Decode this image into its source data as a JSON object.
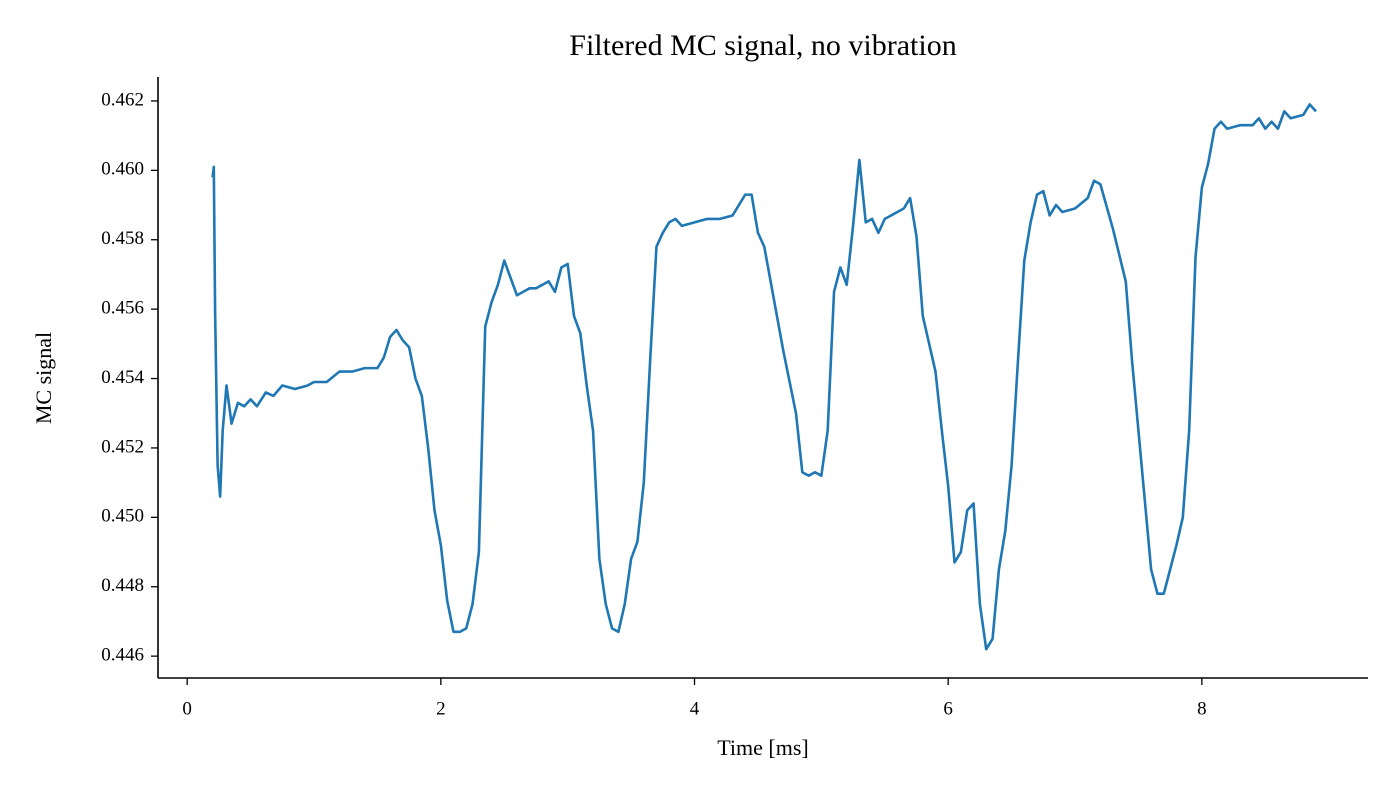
{
  "chart_data": {
    "type": "line",
    "title": "Filtered MC signal, no vibration",
    "xlabel": "Time [ms]",
    "ylabel": "MC signal",
    "xlim": [
      -0.23,
      9.31
    ],
    "ylim": [
      0.44537,
      0.46269
    ],
    "xticks": [
      0,
      2,
      4,
      6,
      8
    ],
    "yticks": [
      0.446,
      0.448,
      {
        "value": 0.45,
        "label": "0.450"
      },
      0.452,
      0.454,
      0.456,
      0.458,
      {
        "value": 0.46,
        "label": "0.460"
      },
      0.462
    ],
    "series": [
      {
        "color": "#1f77b4",
        "x": [
          0.2,
          0.21,
          0.22,
          0.24,
          0.26,
          0.28,
          0.31,
          0.35,
          0.4,
          0.45,
          0.5,
          0.55,
          0.62,
          0.68,
          0.75,
          0.85,
          0.95,
          1.0,
          1.1,
          1.2,
          1.3,
          1.4,
          1.5,
          1.55,
          1.6,
          1.65,
          1.7,
          1.75,
          1.8,
          1.85,
          1.9,
          1.95,
          2.0,
          2.05,
          2.1,
          2.15,
          2.2,
          2.25,
          2.3,
          2.35,
          2.4,
          2.45,
          2.5,
          2.55,
          2.6,
          2.65,
          2.7,
          2.75,
          2.85,
          2.9,
          2.95,
          3.0,
          3.05,
          3.1,
          3.15,
          3.2,
          3.25,
          3.3,
          3.35,
          3.4,
          3.45,
          3.5,
          3.55,
          3.6,
          3.65,
          3.7,
          3.75,
          3.8,
          3.85,
          3.9,
          4.0,
          4.1,
          4.2,
          4.3,
          4.35,
          4.4,
          4.45,
          4.5,
          4.55,
          4.6,
          4.7,
          4.8,
          4.85,
          4.9,
          4.95,
          5.0,
          5.05,
          5.1,
          5.15,
          5.2,
          5.25,
          5.3,
          5.35,
          5.4,
          5.45,
          5.5,
          5.55,
          5.6,
          5.65,
          5.7,
          5.75,
          5.8,
          5.9,
          5.95,
          6.0,
          6.05,
          6.1,
          6.15,
          6.2,
          6.25,
          6.3,
          6.35,
          6.4,
          6.45,
          6.5,
          6.55,
          6.6,
          6.65,
          6.7,
          6.75,
          6.8,
          6.85,
          6.9,
          7.0,
          7.1,
          7.15,
          7.2,
          7.3,
          7.4,
          7.45,
          7.5,
          7.55,
          7.6,
          7.65,
          7.7,
          7.75,
          7.8,
          7.85,
          7.9,
          7.95,
          8.0,
          8.05,
          8.1,
          8.15,
          8.2,
          8.3,
          8.4,
          8.45,
          8.5,
          8.55,
          8.6,
          8.65,
          8.7,
          8.8,
          8.85,
          8.9
        ],
        "values": [
          0.4598,
          0.4601,
          0.456,
          0.4515,
          0.4506,
          0.4525,
          0.4538,
          0.4527,
          0.4533,
          0.4532,
          0.4534,
          0.4532,
          0.4536,
          0.4535,
          0.4538,
          0.4537,
          0.4538,
          0.4539,
          0.4539,
          0.4542,
          0.4542,
          0.4543,
          0.4543,
          0.4546,
          0.4552,
          0.4554,
          0.4551,
          0.4549,
          0.454,
          0.4535,
          0.452,
          0.4502,
          0.4492,
          0.4476,
          0.4467,
          0.4467,
          0.4468,
          0.4475,
          0.449,
          0.4555,
          0.4562,
          0.4567,
          0.4574,
          0.4569,
          0.4564,
          0.4565,
          0.4566,
          0.4566,
          0.4568,
          0.4565,
          0.4572,
          0.4573,
          0.4558,
          0.4553,
          0.4538,
          0.4525,
          0.4488,
          0.4475,
          0.4468,
          0.4467,
          0.4475,
          0.4488,
          0.4493,
          0.451,
          0.4545,
          0.4578,
          0.4582,
          0.4585,
          0.4586,
          0.4584,
          0.4585,
          0.4586,
          0.4586,
          0.4587,
          0.459,
          0.4593,
          0.4593,
          0.4582,
          0.4578,
          0.4568,
          0.4548,
          0.453,
          0.4513,
          0.4512,
          0.4513,
          0.4512,
          0.4525,
          0.4565,
          0.4572,
          0.4567,
          0.4584,
          0.4603,
          0.4585,
          0.4586,
          0.4582,
          0.4586,
          0.4587,
          0.4588,
          0.4589,
          0.4592,
          0.4581,
          0.4558,
          0.4542,
          0.4525,
          0.4509,
          0.4487,
          0.449,
          0.4502,
          0.4504,
          0.4475,
          0.4462,
          0.4465,
          0.4485,
          0.4496,
          0.4515,
          0.4545,
          0.4574,
          0.4585,
          0.4593,
          0.4594,
          0.4587,
          0.459,
          0.4588,
          0.4589,
          0.4592,
          0.4597,
          0.4596,
          0.4583,
          0.4568,
          0.4545,
          0.4525,
          0.4505,
          0.4485,
          0.4478,
          0.4478,
          0.4485,
          0.4492,
          0.45,
          0.4525,
          0.4575,
          0.4595,
          0.4602,
          0.4612,
          0.4614,
          0.4612,
          0.4613,
          0.4613,
          0.4615,
          0.4612,
          0.4614,
          0.4612,
          0.4617,
          0.4615,
          0.4616,
          0.4619,
          0.4617
        ]
      }
    ]
  }
}
